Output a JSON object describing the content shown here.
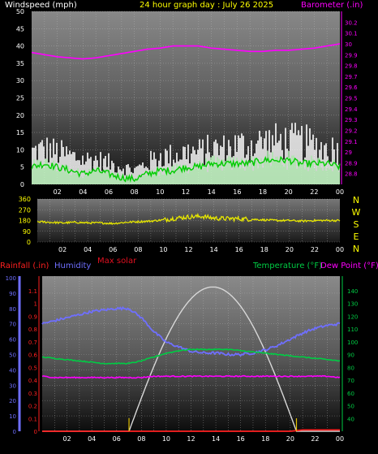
{
  "header": {
    "wind_title": "Windspeed (mph)",
    "graph_title": "24 hour graph day : July 26 2025",
    "baro_title": "Barometer (.in)"
  },
  "rain_header": {
    "rainfall": "Rainfall (.in)",
    "humidity": "Humidity",
    "max_solar": "Max solar",
    "temperature": "Temperature (°F)",
    "dew_point": "Dew Point (°F)"
  },
  "colors": {
    "wind_title": "#ffffff",
    "graph_title": "#ffff00",
    "barometer": "#ff00ff",
    "wind_gust": "#ffffff",
    "wind_avg": "#00cc00",
    "wind_fill": "#b8f0b8",
    "direction": "#e6e600",
    "rainfall": "#ff2020",
    "humidity": "#6f6fff",
    "max_solar": "#e01020",
    "temperature": "#00cc44",
    "dew_point": "#ff00ff",
    "solar_curve": "#d8d8d8",
    "rain_rate": "#e0c000"
  },
  "chart_data": [
    {
      "type": "line",
      "title": "24 hour graph day : July 26 2025",
      "x_ticks": [
        "02",
        "04",
        "06",
        "08",
        "10",
        "12",
        "14",
        "16",
        "18",
        "20",
        "22",
        "00"
      ],
      "x": [
        "00",
        "01",
        "02",
        "03",
        "04",
        "05",
        "06",
        "07",
        "08",
        "09",
        "10",
        "11",
        "12",
        "13",
        "14",
        "15",
        "16",
        "17",
        "18",
        "19",
        "20",
        "21",
        "22",
        "23",
        "00"
      ],
      "y_left": {
        "label": "Windspeed (mph)",
        "ylim": [
          0,
          50
        ],
        "ticks": [
          "0",
          "5",
          "10",
          "15",
          "20",
          "25",
          "30",
          "35",
          "40",
          "45",
          "50"
        ]
      },
      "y_right": {
        "label": "Barometer (.in)",
        "ylim": [
          28.7,
          30.3
        ],
        "ticks": [
          "28.8",
          "28.9",
          "29",
          "29.1",
          "29.2",
          "29.3",
          "29.4",
          "29.5",
          "29.6",
          "29.7",
          "29.8",
          "29.9",
          "30",
          "30.1",
          "30.2"
        ]
      },
      "grid": true,
      "series": [
        {
          "name": "Gust",
          "axis": "left",
          "values": [
            9,
            10,
            9,
            8,
            7,
            7,
            6,
            5,
            4,
            6,
            8,
            8,
            9,
            9,
            10,
            10,
            11,
            11,
            12,
            12,
            12,
            12,
            11,
            10,
            10
          ]
        },
        {
          "name": "Average",
          "axis": "left",
          "values": [
            5,
            6,
            5,
            4,
            3,
            4,
            3,
            2,
            1.5,
            3,
            4,
            4,
            5,
            5,
            6,
            6,
            6,
            6,
            7,
            7,
            7,
            6,
            6,
            6,
            5
          ]
        },
        {
          "name": "Barometer",
          "axis": "right",
          "values": [
            29.92,
            29.9,
            29.88,
            29.87,
            29.86,
            29.87,
            29.89,
            29.91,
            29.93,
            29.95,
            29.96,
            29.98,
            29.98,
            29.98,
            29.96,
            29.95,
            29.94,
            29.93,
            29.93,
            29.94,
            29.94,
            29.95,
            29.96,
            29.98,
            30.0
          ]
        }
      ]
    },
    {
      "type": "line",
      "title": "",
      "x_ticks": [
        "02",
        "04",
        "06",
        "08",
        "10",
        "12",
        "14",
        "16",
        "18",
        "20",
        "22",
        "00"
      ],
      "y": {
        "ylim": [
          0,
          360
        ],
        "ticks": [
          "0",
          "90",
          "180",
          "270",
          "360"
        ]
      },
      "compass": [
        "N",
        "W",
        "S",
        "E",
        "N"
      ],
      "grid": true,
      "series": [
        {
          "name": "Direction",
          "values": [
            170,
            165,
            160,
            165,
            160,
            160,
            155,
            165,
            170,
            175,
            185,
            200,
            210,
            215,
            200,
            195,
            195,
            190,
            185,
            180,
            180,
            175,
            180,
            180,
            180
          ]
        }
      ]
    },
    {
      "type": "line",
      "title": "",
      "x_ticks": [
        "02",
        "04",
        "06",
        "08",
        "10",
        "12",
        "14",
        "16",
        "18",
        "20",
        "22",
        "00"
      ],
      "x": [
        "00",
        "01",
        "02",
        "03",
        "04",
        "05",
        "06",
        "07",
        "08",
        "09",
        "10",
        "11",
        "12",
        "13",
        "14",
        "15",
        "16",
        "17",
        "18",
        "19",
        "20",
        "21",
        "22",
        "23",
        "00"
      ],
      "y_rain": {
        "label": "Rainfall (.in)",
        "ylim": [
          0,
          1.2
        ],
        "ticks": [
          "0",
          "0.1",
          "0.2",
          "0.3",
          "0.4",
          "0.5",
          "0.6",
          "0.7",
          "0.8",
          "0.9",
          "1",
          "1.1"
        ]
      },
      "y_humidity": {
        "label": "Humidity",
        "ylim": [
          0,
          100
        ],
        "ticks": [
          "0",
          "10",
          "20",
          "30",
          "40",
          "50",
          "60",
          "70",
          "80",
          "90",
          "100"
        ]
      },
      "y_temp": {
        "label": "Temperature (°F)",
        "ylim": [
          30,
          150
        ],
        "ticks": [
          "40",
          "50",
          "60",
          "70",
          "80",
          "90",
          "100",
          "110",
          "120",
          "130",
          "140"
        ]
      },
      "grid": true,
      "series": [
        {
          "name": "Humidity",
          "axis": "humidity",
          "values": [
            70,
            72,
            74,
            76,
            78,
            79,
            80,
            80,
            74,
            65,
            58,
            55,
            52,
            51,
            51,
            50,
            50,
            51,
            53,
            56,
            60,
            64,
            67,
            69,
            70
          ]
        },
        {
          "name": "Temperature",
          "axis": "temp",
          "values": [
            88,
            87,
            86,
            85,
            84,
            83,
            83,
            83,
            85,
            88,
            91,
            93,
            94,
            94,
            94,
            94,
            93,
            92,
            91,
            90,
            89,
            88,
            87,
            86,
            85
          ]
        },
        {
          "name": "Dew Point",
          "axis": "temp",
          "values": [
            73,
            72,
            72,
            72,
            72,
            72,
            72,
            72,
            72,
            73,
            73,
            73,
            73,
            73,
            73,
            73,
            73,
            73,
            73,
            73,
            73,
            73,
            73,
            73,
            72
          ]
        },
        {
          "name": "Max solar",
          "axis": "humidity",
          "values": [
            0,
            0,
            0,
            0,
            0,
            0,
            0,
            0,
            10,
            30,
            52,
            72,
            86,
            94,
            94,
            86,
            72,
            52,
            30,
            10,
            0,
            0,
            0,
            0,
            0
          ]
        },
        {
          "name": "Rainfall",
          "axis": "rain",
          "values": [
            0,
            0,
            0,
            0,
            0,
            0,
            0,
            0,
            0,
            0,
            0,
            0,
            0,
            0,
            0,
            0,
            0,
            0,
            0,
            0,
            0,
            0.01,
            0.01,
            0.01,
            0.01
          ]
        }
      ]
    }
  ]
}
